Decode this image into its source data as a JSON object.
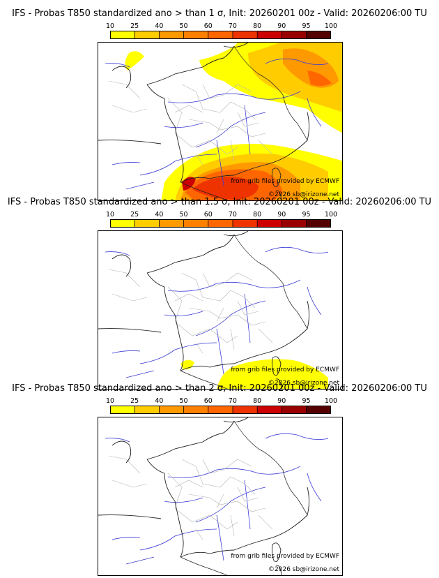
{
  "colorbar": {
    "ticks": [
      "10",
      "25",
      "40",
      "50",
      "60",
      "70",
      "80",
      "90",
      "95",
      "100"
    ],
    "colors": [
      "#ffff00",
      "#ffcc00",
      "#ff9900",
      "#ff8000",
      "#ff6600",
      "#ee3300",
      "#cc0000",
      "#990000",
      "#550000"
    ]
  },
  "panels": [
    {
      "title": "IFS - Probas T850  standardized ano > than 1 σ, Init: 20260201 00z - Valid: 20260206:00 TU",
      "credit_source": "from grib files provided by ECMWF",
      "credit_copyright": "©2026 sb@irizone.net",
      "probability_areas": [
        "northeast (Germany/Switzerland)",
        "south (Mediterranean / Gulf of Lion)"
      ]
    },
    {
      "title": "IFS - Probas T850  standardized ano > than 1.5 σ, Init: 20260201 00z - Valid: 20260206:00 TU",
      "credit_source": "from grib files provided by ECMWF",
      "credit_copyright": "©2026 sb@irizone.net",
      "probability_areas": [
        "south (Mediterranean)"
      ]
    },
    {
      "title": "IFS - Probas T850  standardized ano > than 2 σ, Init: 20260201 00z - Valid: 20260206:00 TU",
      "credit_source": "from grib files provided by ECMWF",
      "credit_copyright": "©2026 sb@irizone.net",
      "probability_areas": []
    }
  ]
}
